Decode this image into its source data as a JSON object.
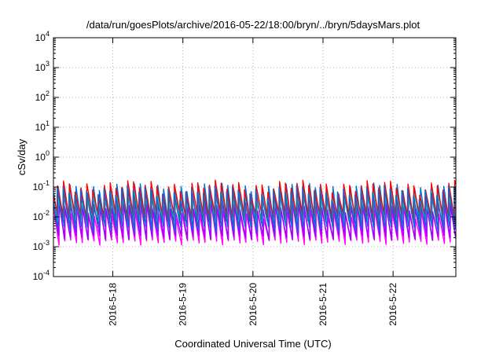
{
  "chart_data": {
    "type": "line",
    "title": "/data/run/goesPlots/archive/2016-05-22/18:00/bryn/../bryn/5daysMars.plot",
    "xlabel": "Coordinated Universal Time (UTC)",
    "ylabel": "cSv/day",
    "yscale": "log",
    "ylim": [
      0.0001,
      10000
    ],
    "xlim": [
      "2016-05-17 03:40",
      "2016-05-22 21:30"
    ],
    "y_ticks": [
      {
        "base": "10",
        "exp": "-4",
        "value": 0.0001
      },
      {
        "base": "10",
        "exp": "-3",
        "value": 0.001
      },
      {
        "base": "10",
        "exp": "-2",
        "value": 0.01
      },
      {
        "base": "10",
        "exp": "-1",
        "value": 0.1
      },
      {
        "base": "10",
        "exp": "0",
        "value": 1
      },
      {
        "base": "10",
        "exp": "1",
        "value": 10
      },
      {
        "base": "10",
        "exp": "2",
        "value": 100
      },
      {
        "base": "10",
        "exp": "3",
        "value": 1000
      },
      {
        "base": "10",
        "exp": "4",
        "value": 10000
      }
    ],
    "x_ticks": [
      "2016-5-18",
      "2016-5-19",
      "2016-5-20",
      "2016-5-21",
      "2016-5-22"
    ],
    "grid": true,
    "legend": "none",
    "sawtooth_period_hours": 2,
    "series": [
      {
        "color": "#ff00ff",
        "peak": 0.018,
        "trough": 0.0014
      },
      {
        "color": "#9a00ff",
        "peak": 0.028,
        "trough": 0.002
      },
      {
        "color": "#0070e0",
        "peak": 0.09,
        "trough": 0.004
      },
      {
        "color": "#00bcd4",
        "peak": 0.05,
        "trough": 0.008
      },
      {
        "color": "#ff0000",
        "peak": 0.11,
        "trough": 0.01
      },
      {
        "color": "#2060c0",
        "peak": 0.075,
        "trough": 0.006
      }
    ]
  }
}
